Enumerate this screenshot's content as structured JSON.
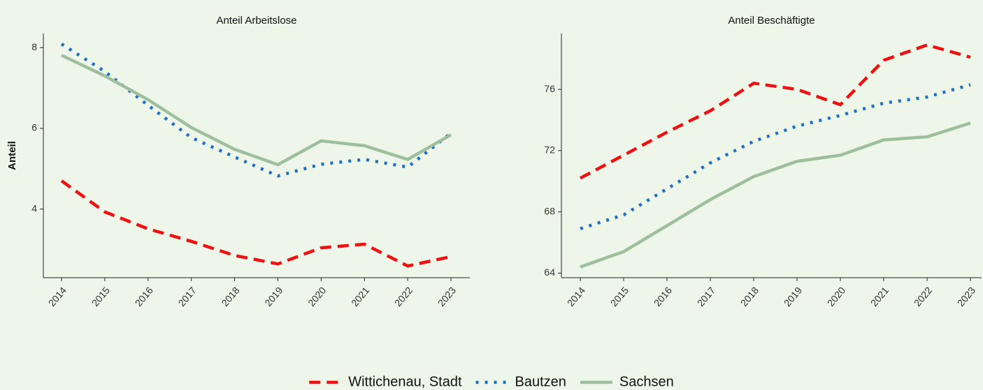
{
  "chart_data": [
    {
      "type": "line",
      "title": "Anteil Arbeitslose",
      "ylabel": "Anteil",
      "categories": [
        "2014",
        "2015",
        "2016",
        "2017",
        "2018",
        "2019",
        "2020",
        "2021",
        "2022",
        "2023"
      ],
      "ylim": [
        2.3,
        8.35
      ],
      "yticks": [
        4,
        6,
        8
      ],
      "series": [
        {
          "name": "Wittichenau, Stadt",
          "color": "#ee1111",
          "linestyle": "dashed",
          "values": [
            4.7,
            3.93,
            3.51,
            3.2,
            2.85,
            2.64,
            3.04,
            3.13,
            2.59,
            2.82
          ]
        },
        {
          "name": "Bautzen",
          "color": "#1f6fc5",
          "linestyle": "dotted",
          "values": [
            8.09,
            7.41,
            6.57,
            5.77,
            5.29,
            4.82,
            5.11,
            5.23,
            5.04,
            5.88
          ]
        },
        {
          "name": "Sachsen",
          "color": "#9dbf9e",
          "linestyle": "solid",
          "values": [
            7.81,
            7.3,
            6.71,
            6.02,
            5.48,
            5.1,
            5.69,
            5.57,
            5.23,
            5.84
          ]
        }
      ]
    },
    {
      "type": "line",
      "title": "Anteil Beschäftigte",
      "categories": [
        "2014",
        "2015",
        "2016",
        "2017",
        "2018",
        "2019",
        "2020",
        "2021",
        "2022",
        "2023"
      ],
      "ylim": [
        63.7,
        79.65
      ],
      "yticks": [
        64,
        68,
        72,
        76
      ],
      "series": [
        {
          "name": "Wittichenau, Stadt",
          "color": "#ee1111",
          "linestyle": "dashed",
          "values": [
            70.2,
            71.7,
            73.2,
            74.6,
            76.4,
            76.0,
            75.0,
            77.9,
            78.9,
            78.1
          ]
        },
        {
          "name": "Bautzen",
          "color": "#1f6fc5",
          "linestyle": "dotted",
          "values": [
            66.9,
            67.8,
            69.5,
            71.2,
            72.6,
            73.6,
            74.3,
            75.1,
            75.5,
            76.3
          ]
        },
        {
          "name": "Sachsen",
          "color": "#9dbf9e",
          "linestyle": "solid",
          "values": [
            64.4,
            65.4,
            67.1,
            68.8,
            70.3,
            71.3,
            71.7,
            72.7,
            72.9,
            73.8
          ]
        }
      ]
    }
  ]
}
